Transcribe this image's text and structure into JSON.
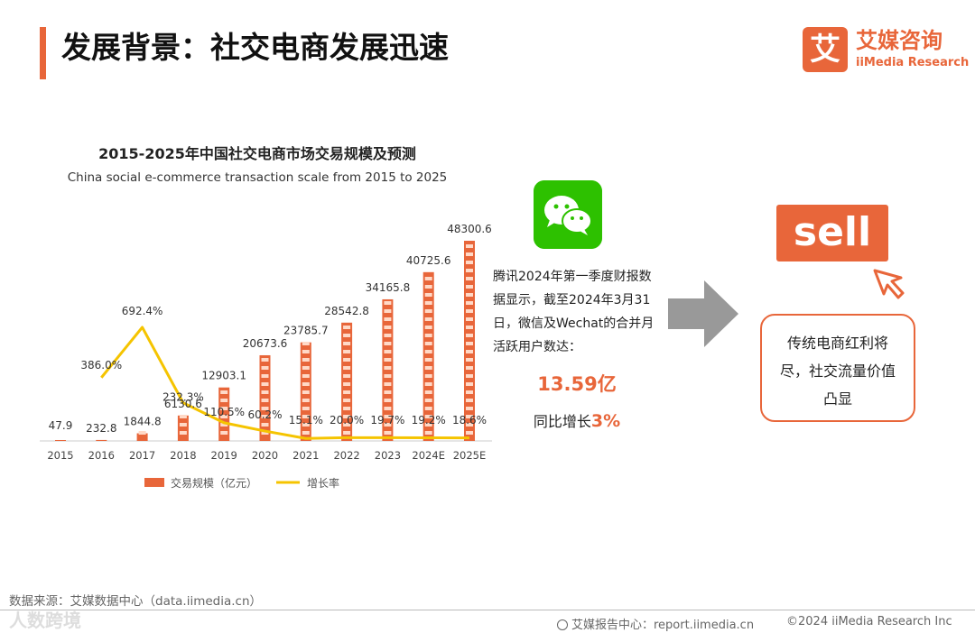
{
  "header": {
    "title": "发展背景：社交电商发展迅速",
    "logo_mark": "艾",
    "logo_cn": "艾媒咨询",
    "logo_en": "iiMedia Research"
  },
  "chart_data": {
    "type": "bar",
    "title": "2015-2025年中国社交电商市场交易规模及预测",
    "subtitle": "China social e-commerce transaction scale from 2015 to 2025",
    "categories": [
      "2015",
      "2016",
      "2017",
      "2018",
      "2019",
      "2020",
      "2021",
      "2022",
      "2023",
      "2024E",
      "2025E"
    ],
    "series": [
      {
        "name": "交易规模（亿元）",
        "type": "bar",
        "color": "#e8663a",
        "values": [
          47.9,
          232.8,
          1844.8,
          6130.6,
          12903.1,
          20673.6,
          23785.7,
          28542.8,
          34165.8,
          40725.6,
          48300.6
        ],
        "labels": [
          "47.9",
          "232.8",
          "1844.8",
          "6130.6",
          "12903.1",
          "20673.6",
          "23785.7",
          "28542.8",
          "34165.8",
          "40725.6",
          "48300.6"
        ]
      },
      {
        "name": "增长率",
        "type": "line",
        "color": "#f5c400",
        "values": [
          null,
          386.0,
          692.4,
          232.3,
          110.5,
          60.2,
          15.1,
          20.0,
          19.7,
          19.2,
          18.6
        ],
        "labels": [
          "",
          "386.0%",
          "692.4%",
          "232.3%",
          "110.5%",
          "60.2%",
          "15.1%",
          "20.0%",
          "19.7%",
          "19.2%",
          "18.6%"
        ]
      }
    ],
    "legend_position": "bottom",
    "grid": false
  },
  "wechat": {
    "icon": "wechat-icon",
    "text": "腾讯2024年第一季度财报数据显示，截至2024年3月31日，微信及Wechat的合并月活跃用户数达：",
    "metric": "13.59亿",
    "growth_prefix": "同比增长",
    "growth_value": "3%"
  },
  "sell": {
    "badge": "sell",
    "insight": "传统电商红利将尽，社交流量价值凸显"
  },
  "footer": {
    "source": "数据来源：艾媒数据中心（data.iimedia.cn）",
    "watermark": "人数跨境",
    "report": "艾媒报告中心：report.iimedia.cn",
    "copyright": "©2024  iiMedia Research Inc"
  },
  "colors": {
    "accent": "#e8663a",
    "line": "#f5c400",
    "wechat_green": "#2dc100",
    "arrow": "#999999"
  }
}
